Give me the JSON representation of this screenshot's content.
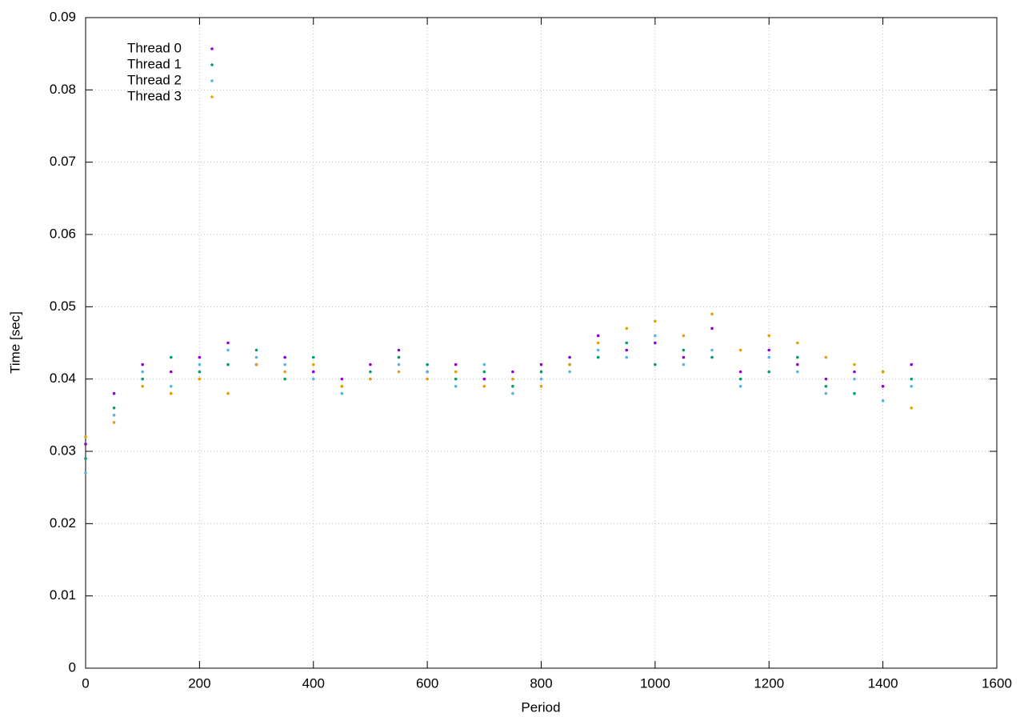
{
  "chart_data": {
    "type": "scatter",
    "x_label": "Period",
    "y_label": "Time [sec]",
    "x": [
      0,
      50,
      100,
      150,
      200,
      250,
      300,
      350,
      400,
      450,
      500,
      550,
      600,
      650,
      700,
      750,
      800,
      850,
      900,
      950,
      1000,
      1050,
      1100,
      1150,
      1200,
      1250,
      1300,
      1350,
      1400,
      1450
    ],
    "series": [
      {
        "name": "Thread 0",
        "color": "#9400d3",
        "values": [
          0.031,
          0.038,
          0.042,
          0.041,
          0.043,
          0.045,
          0.042,
          0.043,
          0.041,
          0.04,
          0.042,
          0.044,
          0.041,
          0.042,
          0.04,
          0.041,
          0.042,
          0.043,
          0.046,
          0.044,
          0.045,
          0.043,
          0.047,
          0.041,
          0.044,
          0.042,
          0.04,
          0.041,
          0.039,
          0.042
        ]
      },
      {
        "name": "Thread 1",
        "color": "#009e73",
        "values": [
          0.029,
          0.036,
          0.04,
          0.043,
          0.041,
          0.042,
          0.044,
          0.04,
          0.043,
          0.039,
          0.041,
          0.043,
          0.042,
          0.04,
          0.041,
          0.039,
          0.041,
          0.042,
          0.043,
          0.045,
          0.042,
          0.044,
          0.043,
          0.04,
          0.041,
          0.043,
          0.039,
          0.038,
          0.041,
          0.04
        ]
      },
      {
        "name": "Thread 2",
        "color": "#56b4e9",
        "values": [
          0.027,
          0.035,
          0.041,
          0.039,
          0.042,
          0.044,
          0.043,
          0.042,
          0.04,
          0.038,
          0.04,
          0.042,
          0.041,
          0.039,
          0.042,
          0.038,
          0.04,
          0.041,
          0.044,
          0.043,
          0.046,
          0.042,
          0.044,
          0.039,
          0.043,
          0.041,
          0.038,
          0.04,
          0.037,
          0.039
        ]
      },
      {
        "name": "Thread 3",
        "color": "#e69f00",
        "values": [
          0.032,
          0.034,
          0.039,
          0.038,
          0.04,
          0.038,
          0.042,
          0.041,
          0.042,
          0.039,
          0.04,
          0.041,
          0.04,
          0.041,
          0.039,
          0.04,
          0.039,
          0.042,
          0.045,
          0.047,
          0.048,
          0.046,
          0.049,
          0.044,
          0.046,
          0.045,
          0.043,
          0.042,
          0.041,
          0.036
        ]
      }
    ],
    "xlim": [
      0,
      1600
    ],
    "xticks": [
      0,
      200,
      400,
      600,
      800,
      1000,
      1200,
      1400,
      1600
    ],
    "ylim": [
      0,
      0.09
    ],
    "yticks": [
      0,
      0.01,
      0.02,
      0.03,
      0.04,
      0.05,
      0.06,
      0.07,
      0.08,
      0.09
    ],
    "grid": true,
    "legend": "top-left"
  }
}
